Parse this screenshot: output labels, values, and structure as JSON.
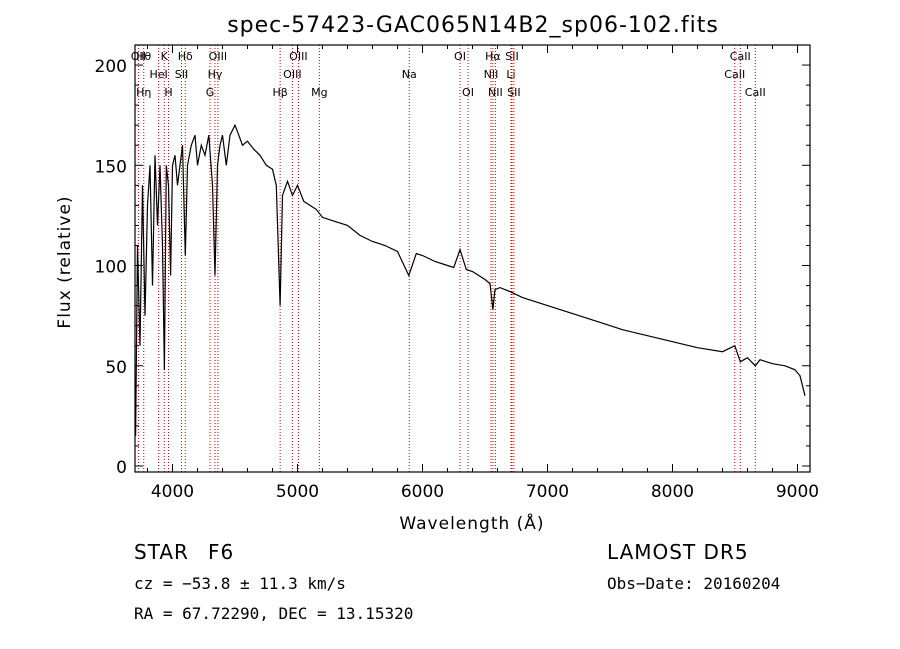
{
  "chart_data": {
    "type": "line",
    "title": "spec-57423-GAC065N14B2_sp06-102.fits",
    "xlabel": "Wavelength (Å)",
    "ylabel": "Flux (relative)",
    "xlim": [
      3700,
      9100
    ],
    "ylim": [
      -3,
      210
    ],
    "xticks": [
      4000,
      5000,
      6000,
      7000,
      8000,
      9000
    ],
    "yticks": [
      0,
      50,
      100,
      150,
      200
    ],
    "grid": false,
    "line_color": "#000000",
    "marker_color": "#cc0000",
    "series": [
      {
        "x": [
          3705,
          3720,
          3740,
          3760,
          3780,
          3800,
          3820,
          3840,
          3860,
          3880,
          3900,
          3920,
          3935,
          3950,
          3968,
          3985,
          4000,
          4020,
          4040,
          4060,
          4080,
          4102,
          4120,
          4150,
          4180,
          4200,
          4230,
          4260,
          4290,
          4320,
          4340,
          4360,
          4380,
          4400,
          4430,
          4460,
          4500,
          4530,
          4560,
          4600,
          4650,
          4700,
          4750,
          4800,
          4830,
          4861,
          4880,
          4920,
          4960,
          5000,
          5050,
          5100,
          5150,
          5200,
          5300,
          5400,
          5500,
          5600,
          5700,
          5800,
          5890,
          5950,
          6000,
          6100,
          6200,
          6250,
          6300,
          6350,
          6400,
          6450,
          6500,
          6540,
          6563,
          6580,
          6620,
          6700,
          6800,
          6900,
          7000,
          7200,
          7400,
          7600,
          7800,
          8000,
          8200,
          8400,
          8498,
          8542,
          8600,
          8662,
          8700,
          8800,
          8900,
          8980,
          9020,
          9060
        ],
        "y": [
          15,
          110,
          60,
          140,
          75,
          130,
          150,
          90,
          155,
          120,
          150,
          110,
          48,
          150,
          140,
          95,
          150,
          155,
          140,
          150,
          160,
          105,
          150,
          160,
          165,
          150,
          160,
          155,
          165,
          140,
          95,
          150,
          160,
          165,
          150,
          165,
          170,
          165,
          160,
          162,
          158,
          155,
          150,
          148,
          140,
          80,
          135,
          142,
          135,
          140,
          132,
          130,
          128,
          124,
          122,
          120,
          115,
          112,
          110,
          107,
          95,
          106,
          105,
          102,
          100,
          99,
          108,
          98,
          97,
          95,
          93,
          91,
          78,
          88,
          89,
          87,
          84,
          82,
          80,
          76,
          72,
          68,
          65,
          62,
          59,
          57,
          60,
          52,
          54,
          50,
          53,
          51,
          50,
          48,
          45,
          35
        ]
      }
    ],
    "line_markers": [
      {
        "wl": 3727,
        "labels": [
          "OII"
        ]
      },
      {
        "wl": 3770,
        "labels": [
          "Hθ",
          "",
          "Hη"
        ]
      },
      {
        "wl": 3889,
        "labels": [
          "",
          "HeI"
        ]
      },
      {
        "wl": 3934,
        "labels": [
          "K"
        ]
      },
      {
        "wl": 3968,
        "labels": [
          "",
          "",
          "H"
        ]
      },
      {
        "wl": 4072,
        "labels": [
          "",
          "SII"
        ]
      },
      {
        "wl": 4102,
        "labels": [
          "Hδ"
        ]
      },
      {
        "wl": 4300,
        "labels": [
          "",
          "",
          "G"
        ]
      },
      {
        "wl": 4340,
        "labels": [
          "",
          "Hγ"
        ]
      },
      {
        "wl": 4363,
        "labels": [
          "OIII"
        ]
      },
      {
        "wl": 4861,
        "labels": [
          "",
          "",
          "Hβ"
        ]
      },
      {
        "wl": 4959,
        "labels": [
          "",
          "OIII"
        ]
      },
      {
        "wl": 5007,
        "labels": [
          "OIII"
        ]
      },
      {
        "wl": 5175,
        "labels": [
          "",
          "",
          "Mg"
        ]
      },
      {
        "wl": 5894,
        "labels": [
          "",
          "Na"
        ]
      },
      {
        "wl": 6300,
        "labels": [
          "OI"
        ]
      },
      {
        "wl": 6364,
        "labels": [
          "",
          "",
          "OI"
        ]
      },
      {
        "wl": 6548,
        "labels": [
          "",
          "NII"
        ]
      },
      {
        "wl": 6563,
        "labels": [
          "Hα"
        ]
      },
      {
        "wl": 6583,
        "labels": [
          "",
          "",
          "NII"
        ]
      },
      {
        "wl": 6708,
        "labels": [
          "",
          "Li"
        ]
      },
      {
        "wl": 6716,
        "labels": [
          "SII"
        ]
      },
      {
        "wl": 6731,
        "labels": [
          "",
          "",
          "SII"
        ]
      },
      {
        "wl": 8498,
        "labels": [
          "",
          "CaII"
        ]
      },
      {
        "wl": 8542,
        "labels": [
          "CaII"
        ]
      },
      {
        "wl": 8662,
        "labels": [
          "",
          "",
          "CaII"
        ]
      }
    ]
  },
  "info": {
    "class_label": "STAR",
    "subclass": "F6",
    "survey": "LAMOST DR5",
    "cz": "cz = −53.8 ± 11.3 km/s",
    "obs_date": "Obs−Date: 20160204",
    "coords": "RA =  67.72290, DEC =  13.15320"
  }
}
